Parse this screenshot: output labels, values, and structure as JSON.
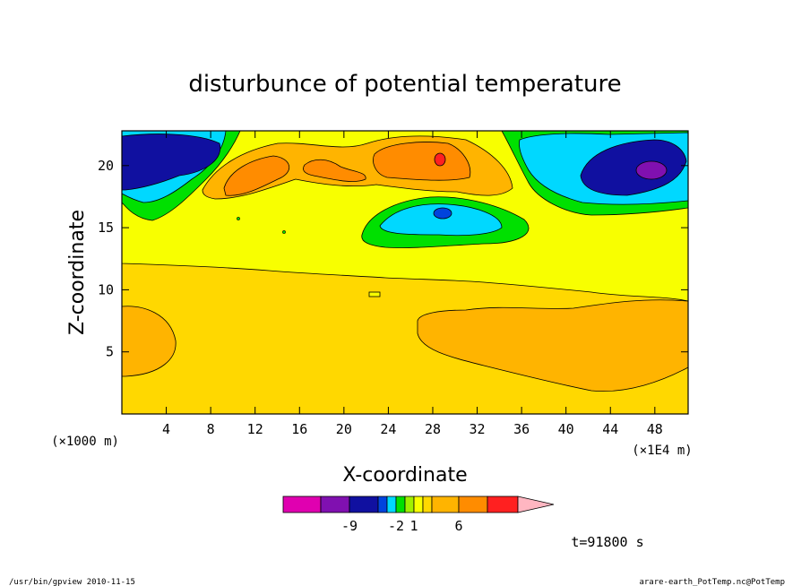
{
  "chart_data": {
    "type": "heatmap",
    "title": "disturbunce of potential temperature",
    "xlabel": "X-coordinate",
    "ylabel": "Z-coordinate",
    "x_unit_left": "(×1000 m)",
    "x_unit_right": "(×1E4 m)",
    "xlim": [
      0,
      51
    ],
    "ylim": [
      0,
      22.8
    ],
    "x_ticks": [
      4,
      8,
      12,
      16,
      20,
      24,
      28,
      32,
      36,
      40,
      44,
      48
    ],
    "y_ticks": [
      5,
      10,
      15,
      20
    ],
    "time_label": "t=91800 s",
    "colorbar": {
      "colors": [
        "#e000b0",
        "#8010b0",
        "#1010a0",
        "#0044dd",
        "#00d8ff",
        "#00e000",
        "#a0f000",
        "#f8ff00",
        "#ffd800",
        "#ffb400",
        "#ff8c00",
        "#ff2020",
        "#ff7878",
        "#ffb6c1"
      ],
      "tick_labels": [
        {
          "label": "-9",
          "box": 1
        },
        {
          "label": "-2",
          "box": 4
        },
        {
          "label": "1",
          "box": 6
        },
        {
          "label": "6",
          "box": 9
        }
      ]
    },
    "regions": [
      {
        "name": "background",
        "level": "0 to 1",
        "color": "#ffd800"
      },
      {
        "name": "upper layer",
        "level": "-1 to 0",
        "color": "#f8ff00"
      },
      {
        "name": "left warm anomaly",
        "level": "1 to 3",
        "color": "#ffb400",
        "center": [
          3,
          6
        ]
      },
      {
        "name": "right warm anomaly",
        "level": "1 to 3",
        "color": "#ffb400",
        "center": [
          42,
          6
        ]
      },
      {
        "name": "upper-left cold core",
        "level": "< -6",
        "color": "#1010a0",
        "center": [
          4,
          20.5
        ]
      },
      {
        "name": "upper-right cold core",
        "level": "< -6",
        "color": "#1010a0",
        "center": [
          46,
          19.5
        ]
      },
      {
        "name": "upper-right coldest",
        "level": "< -9",
        "color": "#8010b0",
        "center": [
          47.5,
          19.7
        ]
      },
      {
        "name": "central cold pocket",
        "level": "-3 to -2",
        "color": "#00d8ff",
        "center": [
          28,
          16
        ]
      },
      {
        "name": "central warm",
        "level": "3 to 6",
        "color": "#ff8c00",
        "center": [
          26,
          20.3
        ]
      },
      {
        "name": "central warm peak",
        "level": "> 6",
        "color": "#ff2020",
        "center": [
          28.8,
          20.6
        ]
      }
    ]
  },
  "footer": {
    "left": "/usr/bin/gpview   2010-11-15",
    "right": "arare-earth_PotTemp.nc@PotTemp"
  }
}
